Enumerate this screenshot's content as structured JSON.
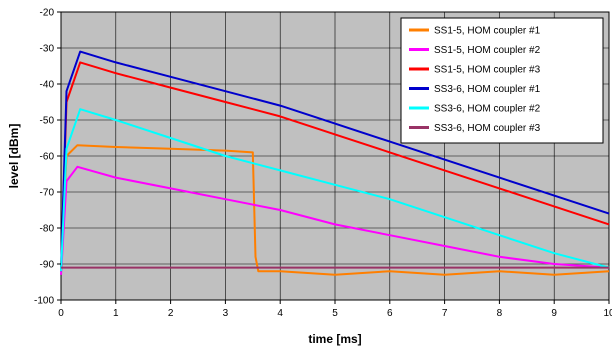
{
  "chart_data": {
    "type": "line",
    "title": "",
    "xlabel": "time [ms]",
    "ylabel": "level [dBm]",
    "xlim": [
      0,
      10
    ],
    "ylim": [
      -100,
      -20
    ],
    "xticks": [
      "0",
      "1",
      "2",
      "3",
      "4",
      "5",
      "6",
      "7",
      "8",
      "9",
      "10"
    ],
    "yticks": [
      "-20",
      "-30",
      "-40",
      "-50",
      "-60",
      "-70",
      "-80",
      "-90",
      "-100"
    ],
    "grid": true,
    "plot_background": "#c0c0c0",
    "legend_position": "top-right",
    "series": [
      {
        "name": "SS1-5, HOM coupler #1",
        "color": "#ff7f00",
        "points": [
          [
            0,
            -92
          ],
          [
            0.1,
            -60
          ],
          [
            0.3,
            -57
          ],
          [
            1,
            -57.5
          ],
          [
            2,
            -58
          ],
          [
            3,
            -58.5
          ],
          [
            3.5,
            -59
          ],
          [
            3.55,
            -88
          ],
          [
            3.6,
            -92
          ],
          [
            4,
            -92
          ],
          [
            5,
            -93
          ],
          [
            6,
            -92
          ],
          [
            7,
            -93
          ],
          [
            8,
            -92
          ],
          [
            9,
            -93
          ],
          [
            10,
            -92
          ]
        ]
      },
      {
        "name": "SS1-5, HOM coupler #2",
        "color": "#ff00ff",
        "points": [
          [
            0,
            -93
          ],
          [
            0.1,
            -67
          ],
          [
            0.3,
            -63
          ],
          [
            1,
            -66
          ],
          [
            2,
            -69
          ],
          [
            3,
            -72
          ],
          [
            4,
            -75
          ],
          [
            5,
            -79
          ],
          [
            6,
            -82
          ],
          [
            7,
            -85
          ],
          [
            8,
            -88
          ],
          [
            9,
            -90
          ],
          [
            10,
            -91
          ]
        ]
      },
      {
        "name": "SS1-5, HOM coupler #3",
        "color": "#ff0000",
        "points": [
          [
            0,
            -92
          ],
          [
            0.1,
            -45
          ],
          [
            0.35,
            -34
          ],
          [
            1,
            -37
          ],
          [
            2,
            -41
          ],
          [
            3,
            -45
          ],
          [
            4,
            -49
          ],
          [
            5,
            -54
          ],
          [
            6,
            -59
          ],
          [
            7,
            -64
          ],
          [
            8,
            -69
          ],
          [
            9,
            -74
          ],
          [
            10,
            -79
          ]
        ]
      },
      {
        "name": "SS3-6, HOM coupler #1",
        "color": "#0000cc",
        "points": [
          [
            0,
            -92
          ],
          [
            0.1,
            -42
          ],
          [
            0.35,
            -31
          ],
          [
            1,
            -34
          ],
          [
            2,
            -38
          ],
          [
            3,
            -42
          ],
          [
            4,
            -46
          ],
          [
            5,
            -51
          ],
          [
            6,
            -56
          ],
          [
            7,
            -61
          ],
          [
            8,
            -66
          ],
          [
            9,
            -71
          ],
          [
            10,
            -76
          ]
        ]
      },
      {
        "name": "SS3-6, HOM coupler #2",
        "color": "#00ffff",
        "points": [
          [
            0,
            -92
          ],
          [
            0.1,
            -58
          ],
          [
            0.35,
            -47
          ],
          [
            1,
            -50
          ],
          [
            2,
            -55
          ],
          [
            3,
            -60
          ],
          [
            4,
            -64
          ],
          [
            5,
            -68
          ],
          [
            6,
            -72
          ],
          [
            7,
            -77
          ],
          [
            8,
            -82
          ],
          [
            9,
            -87
          ],
          [
            10,
            -91
          ]
        ]
      },
      {
        "name": "SS3-6, HOM coupler #3",
        "color": "#993366",
        "points": [
          [
            0,
            -91
          ],
          [
            1,
            -91
          ],
          [
            2,
            -91
          ],
          [
            3,
            -91
          ],
          [
            4,
            -91
          ],
          [
            5,
            -91
          ],
          [
            6,
            -91
          ],
          [
            7,
            -91
          ],
          [
            8,
            -91
          ],
          [
            9,
            -91
          ],
          [
            10,
            -91
          ]
        ]
      }
    ]
  }
}
